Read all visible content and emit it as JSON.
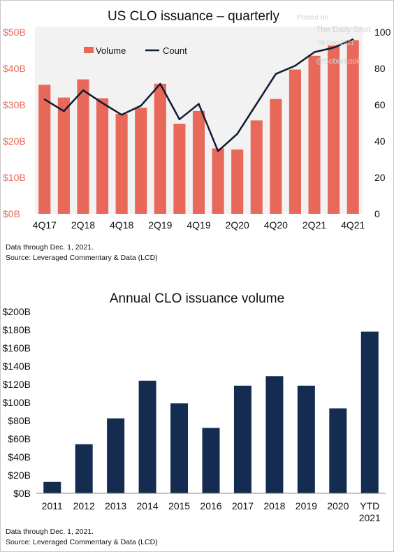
{
  "chart_data": [
    {
      "type": "bar+line",
      "title": "US CLO issuance – quarterly",
      "x": [
        "4Q17",
        "1Q18",
        "2Q18",
        "3Q18",
        "4Q18",
        "1Q19",
        "2Q19",
        "3Q19",
        "4Q19",
        "1Q20",
        "2Q20",
        "3Q20",
        "4Q20",
        "1Q21",
        "2Q21",
        "3Q21",
        "4Q21"
      ],
      "x_tick_labels": [
        "4Q17",
        "2Q18",
        "4Q18",
        "2Q19",
        "4Q19",
        "2Q20",
        "4Q20",
        "2Q21",
        "4Q21"
      ],
      "y_left_ticks": [
        "$0B",
        "$10B",
        "$20B",
        "$30B",
        "$40B",
        "$50B"
      ],
      "y_left_lim": [
        0,
        50
      ],
      "y_right_ticks": [
        "0",
        "20",
        "40",
        "60",
        "80",
        "100"
      ],
      "y_right_lim": [
        0,
        100
      ],
      "series": [
        {
          "name": "Volume",
          "type": "bar",
          "axis": "left",
          "color": "#e8685a",
          "values": [
            35.5,
            32,
            37,
            31.8,
            27.5,
            29.2,
            35.8,
            24.8,
            28.3,
            18,
            17.7,
            25.7,
            31.6,
            39.7,
            43.5,
            46.3,
            47.8
          ]
        },
        {
          "name": "Count",
          "type": "line",
          "axis": "right",
          "color": "#0f1a33",
          "values": [
            63,
            56.5,
            68,
            61,
            54.5,
            59.5,
            71.5,
            52,
            60.5,
            34.5,
            44,
            60.5,
            77,
            81.5,
            89,
            91.5,
            96
          ]
        }
      ],
      "grid": false,
      "legend": "top-left",
      "plot_background": "#f2f2f2",
      "notes": [
        "Data through Dec. 1, 2021.",
        "Source: Leveraged Commentary & Data (LCD)"
      ]
    },
    {
      "type": "bar",
      "title": "Annual CLO issuance volume",
      "categories": [
        "2011",
        "2012",
        "2013",
        "2014",
        "2015",
        "2016",
        "2017",
        "2018",
        "2019",
        "2020",
        "YTD 2021"
      ],
      "category_lines": [
        [
          "2011"
        ],
        [
          "2012"
        ],
        [
          "2013"
        ],
        [
          "2014"
        ],
        [
          "2015"
        ],
        [
          "2016"
        ],
        [
          "2017"
        ],
        [
          "2018"
        ],
        [
          "2019"
        ],
        [
          "2020"
        ],
        [
          "YTD",
          "2021"
        ]
      ],
      "values": [
        12.5,
        54,
        82.5,
        124,
        99,
        72,
        118.5,
        129,
        118.5,
        93.5,
        178
      ],
      "y_ticks": [
        "$0B",
        "$20B",
        "$40B",
        "$60B",
        "$80B",
        "$100B",
        "$120B",
        "$140B",
        "$160B",
        "$180B",
        "$200B"
      ],
      "ylim": [
        0,
        200
      ],
      "color": "#132c4f",
      "grid": false,
      "notes": [
        "Data through Dec. 1, 2021.",
        "Source: Leveraged Commentary & Data (LCD)"
      ]
    }
  ],
  "watermark": {
    "lines": [
      "Posted on",
      "The Daily Shot",
      "08-Dec-2021",
      "@SoberLook"
    ]
  }
}
